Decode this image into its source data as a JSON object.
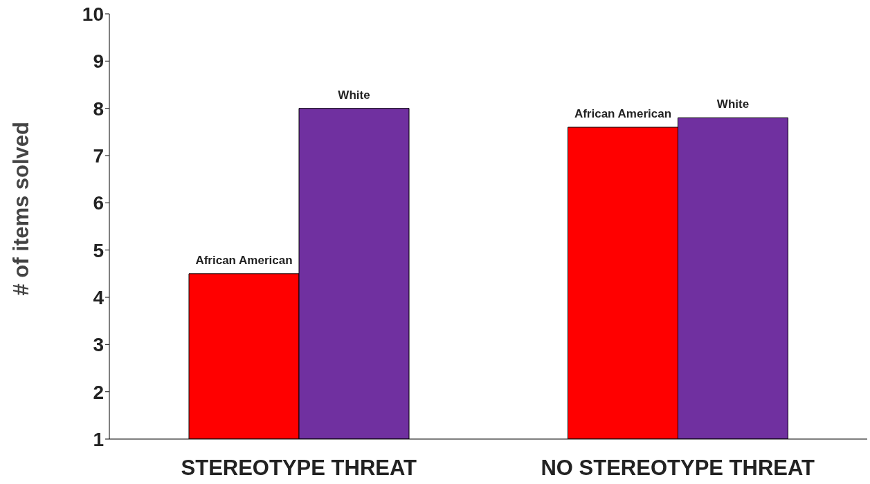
{
  "chart_data": {
    "type": "bar",
    "ylabel": "# of items solved",
    "categories": [
      "STEREOTYPE THREAT",
      "NO STEREOTYPE THREAT"
    ],
    "series": [
      {
        "name": "African American",
        "color": "#ff0000",
        "values": [
          4.5,
          7.6
        ]
      },
      {
        "name": "White",
        "color": "#7030a0",
        "values": [
          8.0,
          7.8
        ]
      }
    ],
    "ylim": [
      1,
      10
    ],
    "yticks": [
      1,
      2,
      3,
      4,
      5,
      6,
      7,
      8,
      9,
      10
    ],
    "grid": false,
    "legend": false
  }
}
